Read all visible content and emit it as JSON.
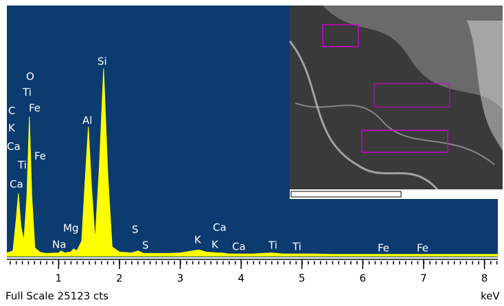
{
  "chart_data": {
    "type": "area",
    "color": "#ffff00",
    "background": "#0b3b6f",
    "x": [
      0.15,
      0.25,
      0.3,
      0.34,
      0.38,
      0.43,
      0.48,
      0.52,
      0.56,
      0.61,
      0.7,
      0.8,
      1.0,
      1.04,
      1.1,
      1.2,
      1.25,
      1.3,
      1.38,
      1.44,
      1.49,
      1.54,
      1.6,
      1.67,
      1.74,
      1.81,
      1.88,
      2.0,
      2.2,
      2.31,
      2.4,
      2.6,
      2.8,
      3.0,
      3.2,
      3.31,
      3.42,
      3.6,
      3.69,
      3.8,
      4.0,
      4.2,
      4.51,
      4.7,
      4.93,
      5.2,
      5.5,
      6.0,
      6.4,
      7.0,
      7.5,
      8.0,
      8.22
    ],
    "values": [
      300,
      500,
      3500,
      6260,
      3000,
      1500,
      6000,
      13970,
      6000,
      800,
      350,
      250,
      300,
      500,
      300,
      400,
      700,
      500,
      1500,
      8000,
      12940,
      7000,
      1500,
      9000,
      18790,
      8000,
      900,
      400,
      300,
      500,
      250,
      250,
      250,
      300,
      500,
      600,
      400,
      300,
      300,
      200,
      200,
      200,
      300,
      200,
      200,
      200,
      150,
      150,
      150,
      150,
      150,
      150,
      150
    ],
    "xlim": [
      0.15,
      8.22
    ],
    "ylim": [
      0,
      25123
    ],
    "xticks": [
      1,
      2,
      3,
      4,
      5,
      6,
      7,
      8
    ],
    "annotations": [
      "O",
      "Ti",
      "C",
      "Fe",
      "K",
      "Ca",
      "Fe",
      "Ti",
      "Ca",
      "Si",
      "Al",
      "Mg",
      "Na",
      "S",
      "S",
      "K",
      "Ca",
      "K",
      "Ca",
      "Ti",
      "Ti",
      "Fe",
      "Fe"
    ],
    "scale_label": "Full Scale 25123 cts",
    "xlabel": "keV"
  }
}
